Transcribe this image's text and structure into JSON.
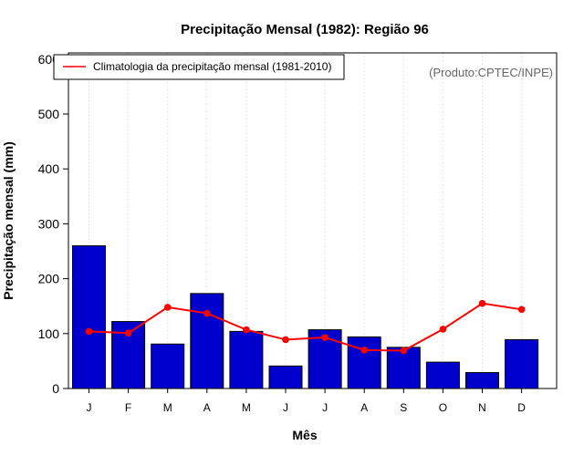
{
  "chart_data": {
    "type": "bar",
    "title": "Precipitação Mensal (1982): Região 96",
    "xlabel": "Mês",
    "ylabel": "Precipitação mensal (mm)",
    "ylim": [
      0,
      600
    ],
    "yticks": [
      "0",
      "100",
      "200",
      "300",
      "400",
      "500",
      "600"
    ],
    "categories": [
      "J",
      "F",
      "M",
      "A",
      "M",
      "J",
      "J",
      "A",
      "S",
      "O",
      "N",
      "D"
    ],
    "series": [
      {
        "name": "Precipitação mensal (1982)",
        "type": "bar",
        "color": "#0000cc",
        "values": [
          260,
          122,
          81,
          173,
          104,
          41,
          107,
          94,
          75,
          48,
          29,
          89
        ]
      },
      {
        "name": "Climatologia da precipitação mensal (1981-2010)",
        "type": "line",
        "color": "#ff0000",
        "values": [
          104,
          101,
          148,
          137,
          107,
          89,
          93,
          70,
          69,
          108,
          155,
          144
        ]
      }
    ],
    "legend": {
      "position": "top-left",
      "entries": [
        "Climatologia da precipitação mensal (1981-2010)"
      ]
    },
    "annotation": "(Produto:CPTEC/INPE)",
    "grid": "vertical dotted"
  }
}
